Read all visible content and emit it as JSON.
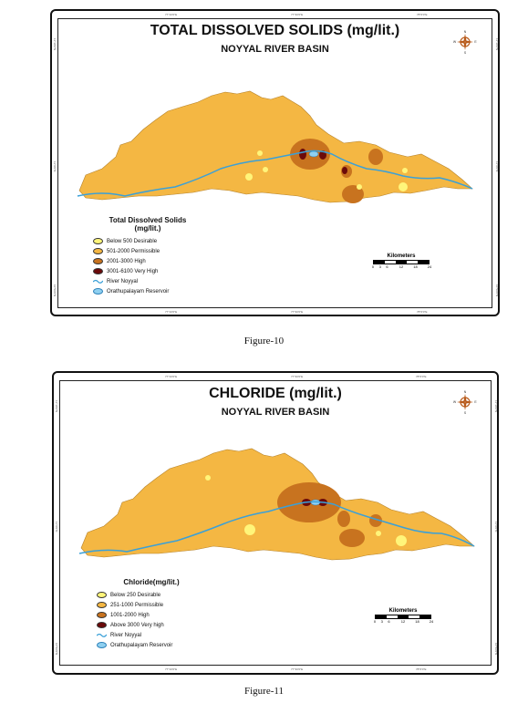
{
  "maps": [
    {
      "title": "TOTAL DISSOLVED SOLIDS (mg/lit.)",
      "subtitle": "NOYYAL RIVER BASIN",
      "caption": "Figure-10",
      "legend_title_line1": "Total Dissolved Solids",
      "legend_title_line2": "(mg/lit.)",
      "legend": [
        {
          "label": "Below 500  Desirable",
          "color": "#fff57a"
        },
        {
          "label": "501-2000  Permissible",
          "color": "#f4b743"
        },
        {
          "label": "2001-3000  High",
          "color": "#c8731f"
        },
        {
          "label": "3001-6100  Very High",
          "color": "#6b0a0a"
        },
        {
          "label": "River Noyyal",
          "color": "#3aa0d8",
          "kind": "river"
        },
        {
          "label": "Orathupalayam Reservoir",
          "color": "#8fd0f0",
          "kind": "reservoir"
        }
      ],
      "scale": {
        "title": "Kilometers",
        "labels": [
          "0",
          "3",
          "6",
          "12",
          "18",
          "24"
        ]
      },
      "top_ticks": [
        "77°10'0\"E",
        "77°30'0\"E",
        "78°0'0\"E"
      ],
      "bottom_ticks": [
        "77°10'0\"E",
        "77°30'0\"E",
        "78°0'0\"E"
      ],
      "side_ticks": [
        "11°10'0\"N",
        "11°0'0\"N",
        "10°50'0\"N"
      ],
      "compass": {
        "n": "N",
        "s": "S",
        "e": "E",
        "w": "W"
      }
    },
    {
      "title": "CHLORIDE (mg/lit.)",
      "subtitle": "NOYYAL RIVER BASIN",
      "caption": "Figure-11",
      "legend_title_line1": "Chloride(mg/lit.)",
      "legend_title_line2": "",
      "legend": [
        {
          "label": "Below 250   Desirable",
          "color": "#fff57a"
        },
        {
          "label": "251-1000    Permissible",
          "color": "#f4b743"
        },
        {
          "label": "1001-2000   High",
          "color": "#c8731f"
        },
        {
          "label": "Above 3000 Very high",
          "color": "#6b0a0a"
        },
        {
          "label": "River Noyyal",
          "color": "#3aa0d8",
          "kind": "river"
        },
        {
          "label": "Orathupalayam Reservoir",
          "color": "#8fd0f0",
          "kind": "reservoir"
        }
      ],
      "scale": {
        "title": "Kilometers",
        "labels": [
          "0",
          "3",
          "6",
          "12",
          "18",
          "24"
        ]
      },
      "top_ticks": [
        "77°10'0\"E",
        "77°30'0\"E",
        "78°0'0\"E"
      ],
      "bottom_ticks": [
        "77°10'0\"E",
        "77°30'0\"E",
        "78°0'0\"E"
      ],
      "side_ticks": [
        "11°10'0\"N",
        "11°0'0\"N",
        "10°50'0\"N"
      ],
      "compass": {
        "n": "N",
        "s": "S",
        "e": "E",
        "w": "W"
      }
    }
  ]
}
